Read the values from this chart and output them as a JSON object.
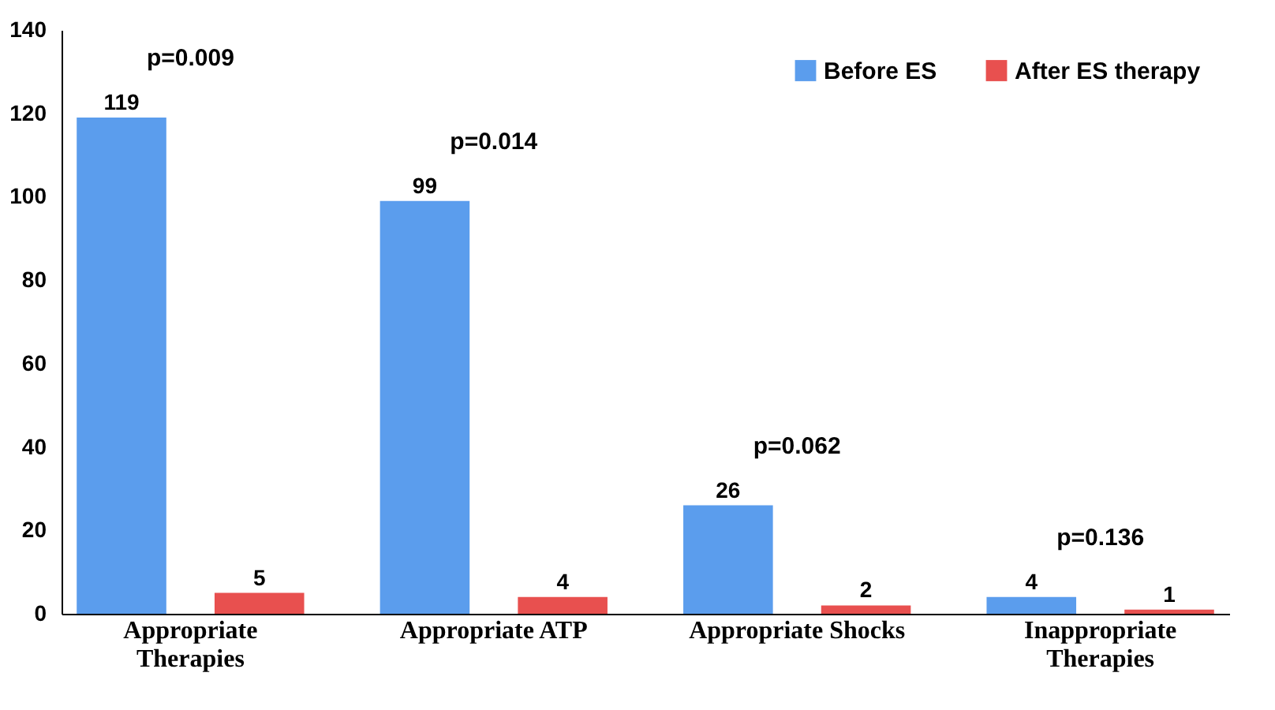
{
  "chart_data": {
    "type": "bar",
    "categories": [
      "Appropriate Therapies",
      "Appropriate ATP",
      "Appropriate Shocks",
      "Inappropriate Therapies"
    ],
    "series": [
      {
        "name": "Before ES",
        "color": "#5b9ded",
        "values": [
          119,
          99,
          26,
          4
        ]
      },
      {
        "name": "After ES therapy",
        "color": "#e8504f",
        "values": [
          5,
          4,
          2,
          1
        ]
      }
    ],
    "ylim": [
      0,
      140
    ],
    "yticks": [
      0,
      20,
      40,
      60,
      80,
      100,
      120,
      140
    ],
    "data_labels": true,
    "legend": "top right",
    "annotations": [
      "p=0.009",
      "p=0.014",
      "p=0.062",
      "p=0.136"
    ]
  }
}
